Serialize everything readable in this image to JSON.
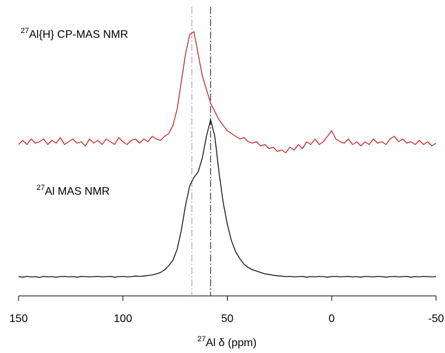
{
  "chart_data": {
    "type": "line",
    "x": [
      150,
      148,
      146,
      144,
      142,
      140,
      138,
      136,
      134,
      132,
      130,
      128,
      126,
      124,
      122,
      120,
      118,
      116,
      114,
      112,
      110,
      108,
      106,
      104,
      102,
      100,
      98,
      96,
      94,
      92,
      90,
      88,
      86,
      84,
      82,
      80,
      78,
      76,
      74,
      72,
      70,
      68,
      66,
      64,
      62,
      60,
      58,
      56,
      54,
      52,
      50,
      48,
      46,
      44,
      42,
      40,
      38,
      36,
      34,
      32,
      30,
      28,
      26,
      24,
      22,
      20,
      18,
      16,
      14,
      12,
      10,
      8,
      6,
      4,
      2,
      0,
      -2,
      -4,
      -6,
      -8,
      -10,
      -12,
      -14,
      -16,
      -18,
      -20,
      -22,
      -24,
      -26,
      -28,
      -30,
      -32,
      -34,
      -36,
      -38,
      -40,
      -42,
      -44,
      -46,
      -48,
      -50
    ],
    "series": [
      {
        "color": "#c0282d",
        "values": [
          55,
          56.5,
          55,
          57,
          55.5,
          56,
          57,
          55,
          56.5,
          55.5,
          57.5,
          55,
          56,
          57,
          55.5,
          56,
          54.5,
          57,
          55.5,
          56.5,
          55,
          57,
          56,
          55,
          57.5,
          56,
          55,
          56.5,
          57,
          55.5,
          57,
          56,
          58,
          57,
          56.5,
          58,
          59,
          62,
          68,
          78,
          88,
          95,
          96,
          88,
          80,
          75,
          70,
          67,
          64,
          62,
          60,
          59,
          58,
          57,
          57.5,
          56,
          55.5,
          56,
          54.5,
          55,
          53.5,
          54,
          52.5,
          53,
          52,
          54,
          53,
          55,
          53.5,
          56,
          55,
          57,
          55,
          56,
          58,
          60,
          57,
          56,
          55.5,
          57,
          55,
          56,
          54.5,
          56,
          55,
          57,
          55.5,
          56,
          55,
          57,
          58,
          56,
          57,
          55.5,
          56,
          55,
          56.5,
          55,
          56,
          54.5,
          55.5
        ]
      },
      {
        "color": "#111111",
        "values": [
          7,
          6.8,
          7.1,
          6.9,
          7,
          6.7,
          7.1,
          6.9,
          7,
          6.8,
          7,
          7.1,
          6.9,
          7,
          6.8,
          7.1,
          7,
          6.9,
          7,
          7.1,
          6.9,
          7,
          7.1,
          6.8,
          7,
          7.1,
          6.9,
          7,
          7.2,
          7.1,
          7.2,
          7.4,
          7.6,
          8,
          8.5,
          9.5,
          11,
          13,
          17,
          24,
          33,
          40,
          43,
          45,
          50,
          58,
          64,
          58,
          45,
          34,
          26,
          20,
          16,
          13.5,
          11.5,
          10.3,
          9.5,
          9,
          8.5,
          8,
          7.8,
          7.5,
          7.3,
          7.2,
          7,
          7.1,
          6.9,
          7,
          7.1,
          6.8,
          7,
          6.9,
          7.1,
          7,
          6.8,
          7,
          7.1,
          6.9,
          7,
          7.1,
          6.9,
          7,
          6.8,
          7.1,
          7,
          6.9,
          7.1,
          7,
          6.8,
          7,
          7.1,
          6.9,
          7,
          7.1,
          6.8,
          7,
          6.9,
          7.1,
          7,
          6.9,
          7
        ]
      }
    ],
    "xlim": [
      150,
      -50
    ],
    "xticks": [
      150,
      100,
      50,
      0,
      -50
    ],
    "ylim": [
      0,
      100
    ],
    "xlabel": {
      "sup": "27",
      "text": "Al δ (ppm)"
    },
    "annotations": [
      {
        "sup": "27",
        "text": "Al{H} CP-MAS NMR"
      },
      {
        "sup": "27",
        "text": "Al MAS NMR"
      }
    ],
    "reference_lines": [
      {
        "x": 67,
        "color": "#aaaaaa"
      },
      {
        "x": 58,
        "color": "#333333"
      }
    ]
  }
}
